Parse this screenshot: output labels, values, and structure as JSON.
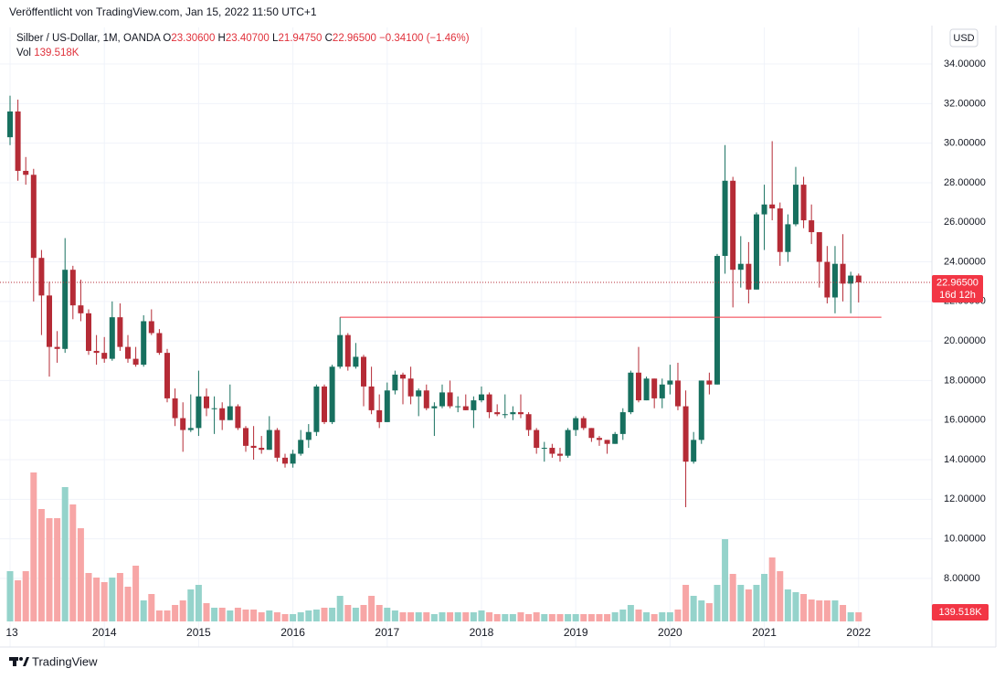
{
  "header": "Veröffentlicht von TradingView.com, Jan 15, 2022 11:50 UTC+1",
  "footer": "TradingView",
  "currency": "USD",
  "legend": {
    "symbol": "Silber / US-Dollar, 1M, OANDA",
    "items": [
      {
        "key": "O",
        "value": "23.30600"
      },
      {
        "key": "H",
        "value": "23.40700"
      },
      {
        "key": "L",
        "value": "21.94750"
      },
      {
        "key": "C",
        "value": "22.96500"
      }
    ],
    "change": "−0.34100 (−1.46%)",
    "vol_title": "Vol"
  },
  "chart_data": {
    "type": "candlestick",
    "up_color": "#17705f",
    "down_color": "#b52b36",
    "volume_up_color": "#95d3cb",
    "volume_down_color": "#f7a6a6",
    "xlim": [
      -1.28,
      117.33
    ],
    "xticks": [
      {
        "value": 0,
        "label": "13"
      },
      {
        "value": 12,
        "label": "2014"
      },
      {
        "value": 24,
        "label": "2015"
      },
      {
        "value": 36,
        "label": "2016"
      },
      {
        "value": 48,
        "label": "2017"
      },
      {
        "value": 60,
        "label": "2018"
      },
      {
        "value": 72,
        "label": "2019"
      },
      {
        "value": 84,
        "label": "2020"
      },
      {
        "value": 96,
        "label": "2021"
      },
      {
        "value": 108,
        "label": "2022"
      }
    ],
    "ylim": [
      4.67,
      35.85
    ],
    "yticks": [
      {
        "value": 8,
        "label": "8.00000"
      },
      {
        "value": 10,
        "label": "10.00000"
      },
      {
        "value": 12,
        "label": "12.00000"
      },
      {
        "value": 14,
        "label": "14.00000"
      },
      {
        "value": 16,
        "label": "16.00000"
      },
      {
        "value": 18,
        "label": "18.00000"
      },
      {
        "value": 20,
        "label": "20.00000"
      },
      {
        "value": 22,
        "label": "22.00000"
      },
      {
        "value": 24,
        "label": "24.00000"
      },
      {
        "value": 26,
        "label": "26.00000"
      },
      {
        "value": 28,
        "label": "28.00000"
      },
      {
        "value": 30,
        "label": "30.00000"
      },
      {
        "value": 32,
        "label": "32.00000"
      },
      {
        "value": 34,
        "label": "34.00000"
      }
    ],
    "grid": true,
    "open": [
      30.3,
      31.6,
      28.6,
      28.4,
      24.2,
      22.3,
      19.7,
      19.6,
      23.6,
      21.8,
      21.4,
      19.5,
      19.4,
      19.1,
      21.2,
      19.7,
      19.1,
      18.8,
      21.0,
      20.4,
      19.4,
      17.1,
      16.1,
      15.5,
      15.6,
      17.2,
      16.6,
      16.6,
      16.0,
      16.7,
      15.6,
      14.7,
      14.6,
      14.5,
      15.5,
      14.1,
      13.8,
      14.3,
      15.0,
      15.4,
      17.7,
      15.9,
      18.7,
      20.3,
      18.7,
      19.2,
      17.7,
      16.5,
      15.9,
      17.5,
      18.3,
      18.1,
      17.2,
      17.5,
      16.6,
      16.7,
      17.4,
      16.7,
      16.7,
      16.5,
      17.0,
      17.3,
      16.4,
      16.3,
      16.3,
      16.4,
      16.3,
      15.5,
      14.6,
      14.6,
      14.3,
      14.2,
      15.5,
      16.1,
      15.6,
      15.1,
      15.0,
      14.8,
      15.3,
      16.4,
      18.4,
      17.0,
      18.1,
      17.1,
      17.8,
      18.0,
      16.7,
      13.9,
      15.0,
      18.0,
      17.8,
      24.3,
      28.1,
      23.6,
      23.9,
      22.6,
      26.4,
      26.9,
      26.7,
      24.5,
      25.9,
      27.9,
      26.1,
      25.5,
      24.0,
      22.2,
      23.9,
      22.9,
      23.306
    ],
    "high": [
      32.4,
      32.2,
      29.3,
      28.7,
      24.6,
      23.0,
      20.5,
      25.2,
      23.8,
      23.1,
      21.6,
      20.3,
      20.2,
      22.0,
      21.9,
      20.3,
      19.7,
      21.3,
      21.6,
      20.6,
      19.6,
      17.6,
      16.9,
      17.3,
      18.5,
      17.6,
      17.2,
      16.9,
      17.8,
      16.8,
      15.7,
      15.7,
      15.2,
      16.2,
      15.6,
      14.3,
      14.5,
      15.5,
      15.8,
      17.8,
      17.8,
      18.8,
      21.2,
      20.4,
      19.9,
      19.3,
      18.7,
      17.3,
      17.9,
      18.5,
      18.4,
      18.7,
      17.6,
      17.8,
      16.9,
      17.8,
      18.0,
      17.2,
      17.3,
      17.2,
      17.7,
      17.4,
      16.8,
      17.3,
      16.7,
      17.3,
      16.4,
      15.6,
      14.9,
      14.8,
      14.6,
      15.6,
      16.2,
      16.2,
      15.6,
      15.2,
      15.0,
      15.4,
      16.6,
      18.5,
      19.7,
      18.2,
      18.1,
      18.1,
      18.8,
      18.9,
      17.5,
      15.4,
      18.0,
      18.4,
      24.4,
      29.9,
      28.3,
      25.3,
      25.0,
      26.5,
      27.9,
      30.1,
      27.0,
      26.4,
      28.8,
      28.3,
      26.9,
      25.5,
      24.8,
      24.8,
      25.4,
      23.5,
      23.407
    ],
    "low": [
      29.9,
      28.1,
      27.9,
      22.0,
      20.3,
      18.2,
      18.9,
      19.4,
      21.1,
      21.0,
      19.3,
      18.8,
      18.9,
      19.0,
      19.5,
      18.9,
      18.7,
      18.7,
      20.3,
      19.3,
      16.9,
      15.7,
      14.4,
      15.4,
      15.2,
      16.2,
      15.3,
      15.5,
      16.0,
      15.5,
      14.4,
      14.0,
      14.3,
      14.5,
      13.9,
      13.6,
      13.6,
      14.2,
      14.6,
      15.2,
      15.8,
      15.8,
      18.6,
      18.5,
      18.6,
      16.7,
      16.3,
      15.6,
      15.9,
      17.3,
      16.8,
      16.8,
      16.2,
      16.5,
      15.2,
      16.6,
      16.6,
      16.4,
      16.5,
      15.6,
      16.9,
      16.1,
      16.2,
      16.1,
      16.0,
      16.1,
      15.2,
      14.3,
      13.9,
      14.1,
      13.9,
      14.1,
      15.2,
      15.5,
      14.9,
      14.7,
      14.3,
      14.8,
      15.0,
      16.3,
      16.9,
      17.0,
      16.6,
      16.6,
      17.3,
      16.5,
      11.6,
      13.8,
      14.8,
      17.3,
      17.8,
      23.4,
      21.7,
      22.7,
      21.9,
      22.6,
      24.6,
      26.1,
      23.8,
      24.0,
      25.8,
      25.7,
      24.9,
      22.7,
      21.9,
      21.4,
      22.0,
      21.4,
      21.9475
    ],
    "close": [
      31.6,
      28.6,
      28.4,
      24.2,
      22.3,
      19.7,
      19.6,
      23.6,
      21.8,
      21.4,
      19.5,
      19.4,
      19.1,
      21.2,
      19.7,
      19.1,
      18.8,
      21.0,
      20.4,
      19.4,
      17.1,
      16.1,
      15.5,
      15.6,
      17.2,
      16.6,
      16.6,
      16.0,
      16.7,
      15.6,
      14.7,
      14.6,
      14.5,
      15.5,
      14.1,
      13.8,
      14.3,
      15.0,
      15.4,
      17.7,
      15.9,
      18.7,
      20.3,
      18.7,
      19.2,
      17.7,
      16.5,
      15.9,
      17.5,
      18.3,
      18.1,
      17.2,
      17.5,
      16.6,
      16.7,
      17.4,
      16.7,
      16.7,
      16.5,
      17.0,
      17.3,
      16.4,
      16.3,
      16.3,
      16.4,
      16.3,
      15.5,
      14.6,
      14.6,
      14.3,
      14.2,
      15.5,
      16.1,
      15.6,
      15.1,
      15.0,
      14.8,
      15.3,
      16.4,
      18.4,
      17.0,
      18.1,
      17.1,
      17.8,
      18.0,
      16.7,
      13.9,
      15.0,
      18.0,
      17.8,
      24.3,
      28.1,
      23.6,
      23.9,
      22.6,
      26.4,
      26.9,
      26.7,
      24.5,
      25.9,
      27.9,
      26.1,
      25.5,
      24.0,
      22.2,
      23.9,
      22.9,
      23.306,
      22.965
    ],
    "last_price_label": "22.96500",
    "countdown": "16d 12h",
    "volume_ylim": [
      0,
      9450000
    ],
    "volume": [
      770000,
      630000,
      770000,
      2282000,
      1722000,
      1582000,
      1582000,
      2058000,
      1792000,
      1428000,
      742000,
      672000,
      602000,
      672000,
      742000,
      532000,
      854000,
      322000,
      420000,
      168000,
      168000,
      252000,
      322000,
      490000,
      560000,
      280000,
      210000,
      210000,
      168000,
      210000,
      182000,
      182000,
      140000,
      168000,
      140000,
      112000,
      112000,
      140000,
      168000,
      182000,
      210000,
      210000,
      392000,
      252000,
      210000,
      252000,
      392000,
      252000,
      210000,
      168000,
      140000,
      140000,
      140000,
      140000,
      112000,
      140000,
      140000,
      140000,
      140000,
      140000,
      168000,
      140000,
      112000,
      112000,
      112000,
      140000,
      112000,
      140000,
      112000,
      112000,
      112000,
      112000,
      112000,
      112000,
      112000,
      112000,
      112000,
      140000,
      182000,
      252000,
      182000,
      140000,
      112000,
      140000,
      140000,
      182000,
      560000,
      392000,
      322000,
      280000,
      560000,
      1260000,
      728000,
      560000,
      490000,
      560000,
      728000,
      980000,
      770000,
      490000,
      448000,
      420000,
      336000,
      322000,
      322000,
      322000,
      252000,
      140000,
      139518
    ],
    "last_volume_label": "139.518K",
    "hline": {
      "value": 21.2,
      "from": 42,
      "to": 110.9,
      "color": "#f23645"
    }
  }
}
